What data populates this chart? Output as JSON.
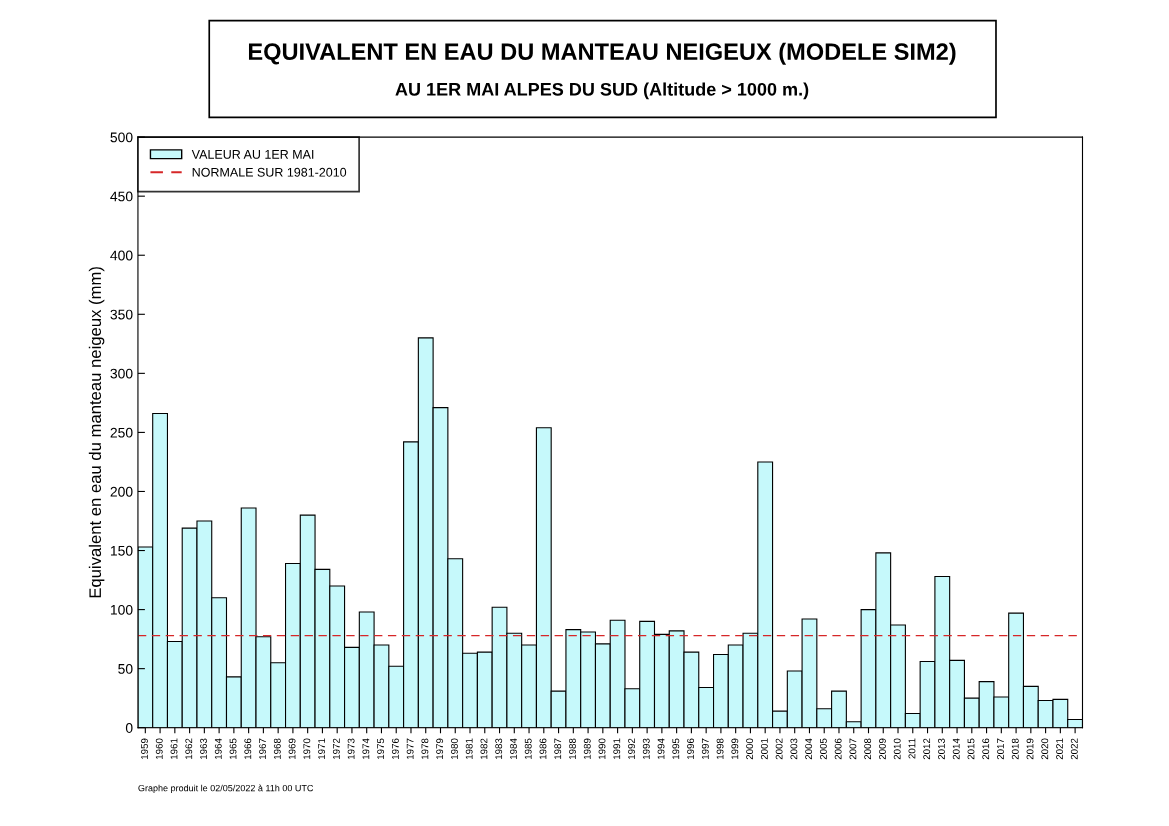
{
  "chart_data": {
    "type": "bar",
    "title": "EQUIVALENT EN EAU DU MANTEAU NEIGEUX (MODELE SIM2)",
    "subtitle": "AU 1ER MAI ALPES DU SUD (Altitude > 1000 m.)",
    "ylabel": "Equivalent en eau du manteau neigeux (mm)",
    "categories": [
      "1959",
      "1960",
      "1961",
      "1962",
      "1963",
      "1964",
      "1965",
      "1966",
      "1967",
      "1968",
      "1969",
      "1970",
      "1971",
      "1972",
      "1973",
      "1974",
      "1975",
      "1976",
      "1977",
      "1978",
      "1979",
      "1980",
      "1981",
      "1982",
      "1983",
      "1984",
      "1985",
      "1986",
      "1987",
      "1988",
      "1989",
      "1990",
      "1991",
      "1992",
      "1993",
      "1994",
      "1995",
      "1996",
      "1997",
      "1998",
      "1999",
      "2000",
      "2001",
      "2002",
      "2003",
      "2004",
      "2005",
      "2006",
      "2007",
      "2008",
      "2009",
      "2010",
      "2011",
      "2012",
      "2013",
      "2014",
      "2015",
      "2016",
      "2017",
      "2018",
      "2019",
      "2020",
      "2021",
      "2022"
    ],
    "series": [
      {
        "name": "VALEUR AU 1ER MAI",
        "color": "#c6f9fb",
        "values": [
          153,
          266,
          73,
          169,
          175,
          110,
          43,
          186,
          77,
          55,
          139,
          180,
          134,
          120,
          68,
          98,
          70,
          52,
          242,
          330,
          271,
          143,
          63,
          64,
          102,
          80,
          70,
          254,
          31,
          83,
          81,
          71,
          91,
          33,
          90,
          79,
          82,
          64,
          34,
          62,
          70,
          80,
          225,
          14,
          48,
          92,
          16,
          31,
          5,
          100,
          148,
          87,
          12,
          56,
          128,
          57,
          25,
          39,
          26,
          97,
          35,
          23,
          24,
          7
        ]
      }
    ],
    "ref_lines": [
      {
        "axis": "y",
        "value": 78,
        "label": "NORMALE SUR 1981-2010",
        "color": "#d62728",
        "line_style": "dashed"
      }
    ],
    "ylim": [
      0,
      500
    ],
    "yticks": [
      0,
      50,
      100,
      150,
      200,
      250,
      300,
      350,
      400,
      450,
      500
    ],
    "grid": false,
    "legend": "top left",
    "annotations": [
      "Graphe produit le 02/05/2022 à 11h 00 UTC"
    ]
  }
}
